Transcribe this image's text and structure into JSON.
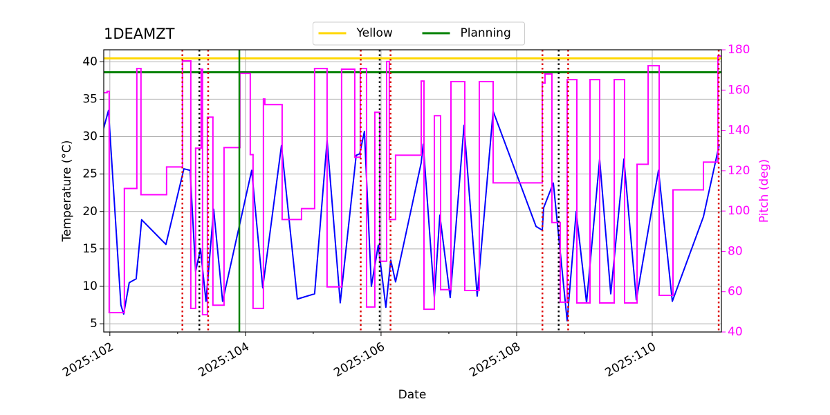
{
  "chart_data": {
    "type": "line",
    "title": "1DEAMZT",
    "x_label": "Date",
    "y_label": "Temperature (°C)",
    "y2_label": "Pitch (deg)",
    "xlim": [
      101.91,
      111.02
    ],
    "xticks": [
      {
        "value": 102,
        "label": "2025:102"
      },
      {
        "value": 104,
        "label": "2025:104"
      },
      {
        "value": 106,
        "label": "2025:106"
      },
      {
        "value": 108,
        "label": "2025:108"
      },
      {
        "value": 110,
        "label": "2025:110"
      }
    ],
    "xticks_minor": [
      103,
      105,
      107,
      109
    ],
    "ylim": [
      3.9,
      41.6
    ],
    "yticks": [
      5,
      10,
      15,
      20,
      25,
      30,
      35,
      40
    ],
    "y2lim": [
      40,
      180
    ],
    "y2ticks": [
      40,
      60,
      80,
      100,
      120,
      140,
      160,
      180
    ],
    "y2_color": "#ff00ff",
    "grid": true,
    "legend": "upper center",
    "series": [
      {
        "color": "#0000ff",
        "axis": "y",
        "drawstyle": "default",
        "x": [
          101.908,
          101.98,
          102.163,
          102.204,
          102.286,
          102.388,
          102.469,
          102.827,
          103.092,
          103.184,
          103.265,
          103.337,
          103.418,
          103.531,
          103.663,
          104.092,
          104.255,
          104.531,
          104.765,
          105.02,
          105.204,
          105.398,
          105.633,
          105.684,
          105.755,
          105.857,
          105.959,
          106.071,
          106.143,
          106.214,
          106.592,
          106.622,
          106.786,
          106.867,
          107.02,
          107.224,
          107.418,
          107.653,
          108.286,
          108.378,
          108.398,
          108.541,
          108.745,
          108.878,
          109.031,
          109.224,
          109.388,
          109.582,
          109.765,
          110.092,
          110.296,
          110.755,
          110.99
        ],
        "values": [
          31.1,
          33.5,
          7.5,
          6.3,
          10.5,
          11.0,
          18.9,
          15.6,
          25.7,
          25.5,
          12.0,
          15.0,
          8.0,
          20.3,
          8.0,
          25.5,
          9.8,
          28.8,
          8.3,
          9.0,
          29.5,
          7.8,
          27.5,
          27.7,
          30.7,
          10.0,
          15.5,
          7.2,
          13.5,
          10.6,
          26.5,
          29.0,
          8.5,
          19.5,
          8.5,
          31.5,
          8.7,
          33.4,
          18.0,
          17.5,
          20.5,
          23.8,
          5.4,
          20.0,
          7.8,
          27.0,
          9.0,
          27.0,
          8.2,
          25.5,
          8.0,
          19.3,
          29.0
        ]
      },
      {
        "color": "#ff00ff",
        "axis": "y2",
        "drawstyle": "steps-post",
        "x": [
          101.908,
          101.959,
          101.99,
          102.214,
          102.398,
          102.459,
          102.837,
          103.071,
          103.194,
          103.265,
          103.347,
          103.367,
          103.439,
          103.52,
          103.684,
          103.918,
          104.071,
          104.112,
          104.265,
          104.286,
          104.541,
          104.827,
          105.02,
          105.204,
          105.418,
          105.612,
          105.694,
          105.786,
          105.908,
          105.98,
          106.082,
          106.122,
          106.214,
          106.592,
          106.633,
          106.786,
          106.878,
          107.031,
          107.235,
          107.449,
          107.653,
          108.378,
          108.418,
          108.52,
          108.643,
          108.745,
          108.888,
          109.082,
          109.224,
          109.439,
          109.592,
          109.776,
          109.939,
          110.102,
          110.306,
          110.755,
          110.969
        ],
        "values": [
          158.7,
          159.4,
          49.6,
          111.2,
          170.7,
          108.1,
          121.9,
          174.5,
          51.7,
          131.2,
          170.4,
          48.6,
          146.6,
          53.3,
          131.5,
          168.3,
          128.0,
          51.7,
          155.6,
          152.8,
          95.8,
          101.2,
          170.7,
          62.4,
          170.4,
          126.7,
          170.7,
          52.4,
          149.0,
          75.1,
          174.2,
          95.8,
          127.7,
          164.5,
          51.3,
          147.3,
          61.0,
          164.2,
          60.6,
          164.2,
          114.0,
          163.5,
          168.0,
          94.3,
          54.8,
          165.2,
          54.4,
          165.2,
          54.4,
          165.2,
          54.4,
          123.2,
          172.1,
          58.2,
          110.5,
          124.3,
          176.9
        ]
      }
    ],
    "hlines": [
      {
        "name": "Yellow",
        "color": "#ffd700",
        "y": 40.46
      },
      {
        "name": "Planning",
        "color": "#008000",
        "y": 38.6
      }
    ],
    "vlines": [
      {
        "x": 103.07,
        "color": "#dd0000",
        "style": "dotted"
      },
      {
        "x": 103.45,
        "color": "#dd0000",
        "style": "dotted"
      },
      {
        "x": 105.7,
        "color": "#dd0000",
        "style": "dotted"
      },
      {
        "x": 106.14,
        "color": "#dd0000",
        "style": "dotted"
      },
      {
        "x": 108.38,
        "color": "#dd0000",
        "style": "dotted"
      },
      {
        "x": 108.76,
        "color": "#dd0000",
        "style": "dotted"
      },
      {
        "x": 110.98,
        "color": "#dd0000",
        "style": "dotted"
      },
      {
        "x": 103.32,
        "color": "#000000",
        "style": "dotted"
      },
      {
        "x": 105.98,
        "color": "#000000",
        "style": "dotted"
      },
      {
        "x": 108.62,
        "color": "#000000",
        "style": "dotted"
      },
      {
        "x": 103.91,
        "color": "#008000",
        "style": "solid"
      }
    ]
  }
}
